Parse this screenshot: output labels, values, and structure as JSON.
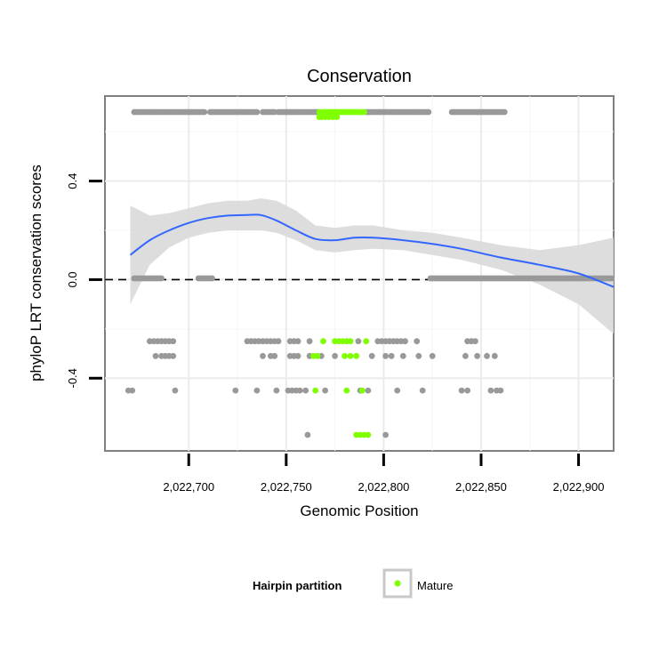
{
  "chart_data": {
    "type": "scatter",
    "title": "Conservation",
    "xlabel": "Genomic Position",
    "ylabel": "phyloP LRT conservation scores",
    "xlim": [
      2022657,
      2022918
    ],
    "ylim": [
      -0.695,
      0.745
    ],
    "x_ticks": [
      {
        "value": 2022700,
        "label": "2,022,700"
      },
      {
        "value": 2022750,
        "label": "2,022,750"
      },
      {
        "value": 2022800,
        "label": "2,022,800"
      },
      {
        "value": 2022850,
        "label": "2,022,850"
      },
      {
        "value": 2022900,
        "label": "2,022,900"
      }
    ],
    "y_ticks": [
      {
        "value": -0.4,
        "label": "-0.4"
      },
      {
        "value": 0.0,
        "label": "0.0"
      },
      {
        "value": 0.4,
        "label": "0.4"
      }
    ],
    "reference_line": {
      "y": 0.0,
      "style": "dashed",
      "color": "#000000"
    },
    "point_colors": {
      "other": "#999999",
      "mature": "#7fff00"
    },
    "point_groups": [
      {
        "y": 0.68,
        "x": [
          2022672,
          2022673,
          2022674,
          2022675,
          2022676,
          2022677,
          2022678,
          2022679,
          2022680,
          2022681,
          2022682,
          2022683,
          2022684,
          2022685,
          2022686,
          2022687,
          2022688,
          2022689,
          2022690,
          2022691,
          2022692,
          2022693,
          2022694,
          2022695,
          2022696,
          2022697,
          2022698,
          2022699,
          2022700,
          2022701,
          2022702,
          2022703,
          2022704,
          2022705,
          2022706,
          2022707,
          2022708,
          2022711,
          2022712,
          2022713,
          2022714,
          2022715,
          2022716,
          2022717,
          2022718,
          2022719,
          2022720,
          2022721,
          2022722,
          2022723,
          2022724,
          2022725,
          2022726,
          2022727,
          2022728,
          2022729,
          2022730,
          2022731,
          2022732,
          2022733,
          2022734,
          2022735,
          2022738,
          2022739,
          2022740,
          2022741,
          2022742,
          2022743,
          2022744,
          2022746,
          2022747,
          2022748,
          2022749,
          2022750,
          2022751,
          2022752,
          2022753,
          2022754,
          2022755,
          2022756,
          2022757,
          2022758,
          2022759,
          2022760,
          2022761,
          2022762,
          2022763,
          2022764,
          2022765,
          2022766,
          2022791,
          2022792,
          2022793,
          2022794,
          2022795,
          2022796,
          2022797,
          2022798,
          2022799,
          2022800,
          2022801,
          2022802,
          2022803,
          2022804,
          2022805,
          2022806,
          2022807,
          2022808,
          2022809,
          2022810,
          2022811,
          2022812,
          2022813,
          2022814,
          2022815,
          2022816,
          2022817,
          2022818,
          2022819,
          2022820,
          2022821,
          2022822,
          2022823,
          2022835,
          2022836,
          2022837,
          2022838,
          2022839,
          2022840,
          2022841,
          2022842,
          2022843,
          2022844,
          2022845,
          2022846,
          2022847,
          2022848,
          2022849,
          2022850,
          2022851,
          2022852,
          2022853,
          2022854,
          2022855,
          2022856,
          2022857,
          2022858,
          2022859,
          2022860,
          2022861,
          2022862
        ]
      },
      {
        "y": 0.68,
        "mature": true,
        "x": [
          2022767,
          2022768,
          2022769,
          2022770,
          2022771,
          2022772,
          2022773,
          2022774,
          2022775,
          2022776,
          2022777,
          2022778,
          2022779,
          2022780,
          2022781,
          2022782,
          2022783,
          2022784,
          2022785,
          2022786,
          2022787,
          2022788,
          2022789,
          2022790
        ]
      },
      {
        "y": 0.66,
        "mature": true,
        "x": [
          2022767,
          2022768,
          2022770,
          2022772,
          2022774,
          2022776
        ]
      },
      {
        "y": 0.005,
        "x": [
          2022672,
          2022673,
          2022674,
          2022675,
          2022676,
          2022677,
          2022678,
          2022679,
          2022680,
          2022681,
          2022682,
          2022683,
          2022684,
          2022685,
          2022686,
          2022705,
          2022706,
          2022707,
          2022708,
          2022709,
          2022710,
          2022711,
          2022712,
          2022824,
          2022825,
          2022826,
          2022827,
          2022828,
          2022829,
          2022830,
          2022831,
          2022832,
          2022833,
          2022834,
          2022835,
          2022836,
          2022837,
          2022838,
          2022839,
          2022840,
          2022841,
          2022842,
          2022843,
          2022844,
          2022845,
          2022846,
          2022847,
          2022848,
          2022849,
          2022850,
          2022851,
          2022852,
          2022853,
          2022854,
          2022855,
          2022856,
          2022857,
          2022858,
          2022859,
          2022860,
          2022861,
          2022862,
          2022863,
          2022864,
          2022865,
          2022866,
          2022867,
          2022868,
          2022869,
          2022870,
          2022871,
          2022872,
          2022873,
          2022874,
          2022875,
          2022876,
          2022877,
          2022878,
          2022879,
          2022880,
          2022881,
          2022882,
          2022883,
          2022884,
          2022885,
          2022886,
          2022887,
          2022888,
          2022889,
          2022890,
          2022891,
          2022892,
          2022893,
          2022894,
          2022895,
          2022896,
          2022897,
          2022898,
          2022899,
          2022900,
          2022901,
          2022902,
          2022903,
          2022904,
          2022905,
          2022906,
          2022907,
          2022908,
          2022909,
          2022910,
          2022911,
          2022912,
          2022913,
          2022914,
          2022915,
          2022916,
          2022917
        ]
      },
      {
        "y": -0.25,
        "x": [
          2022680,
          2022682,
          2022684,
          2022686,
          2022688,
          2022690,
          2022692,
          2022730,
          2022732,
          2022734,
          2022736,
          2022738,
          2022740,
          2022742,
          2022744,
          2022746,
          2022752,
          2022754,
          2022756,
          2022762,
          2022787,
          2022797,
          2022799,
          2022801,
          2022803,
          2022805,
          2022807,
          2022809,
          2022811,
          2022817,
          2022843,
          2022845,
          2022847
        ]
      },
      {
        "y": -0.25,
        "mature": true,
        "x": [
          2022769,
          2022775,
          2022777,
          2022779,
          2022781,
          2022783,
          2022791
        ]
      },
      {
        "y": -0.31,
        "x": [
          2022683,
          2022686,
          2022688,
          2022690,
          2022692,
          2022738,
          2022742,
          2022744,
          2022752,
          2022754,
          2022756,
          2022762,
          2022768,
          2022775,
          2022794,
          2022801,
          2022804,
          2022810,
          2022818,
          2022825,
          2022842,
          2022848,
          2022853,
          2022857
        ]
      },
      {
        "y": -0.31,
        "mature": true,
        "x": [
          2022764,
          2022766,
          2022780,
          2022783,
          2022786
        ]
      },
      {
        "y": -0.45,
        "x": [
          2022669,
          2022671,
          2022693,
          2022724,
          2022735,
          2022745,
          2022751,
          2022753,
          2022755,
          2022757,
          2022760,
          2022770,
          2022788,
          2022792,
          2022807,
          2022820,
          2022840,
          2022843,
          2022855,
          2022858,
          2022860
        ]
      },
      {
        "y": -0.45,
        "mature": true,
        "x": [
          2022765,
          2022781,
          2022789
        ]
      },
      {
        "y": -0.63,
        "x": [
          2022761,
          2022801
        ]
      },
      {
        "y": -0.63,
        "mature": true,
        "x": [
          2022786,
          2022788,
          2022790,
          2022792
        ]
      }
    ],
    "smooth_fit": {
      "color": "#3366ff",
      "band_color": "#d9d9d9",
      "x": [
        2022670,
        2022680,
        2022690,
        2022700,
        2022710,
        2022720,
        2022730,
        2022737,
        2022745,
        2022755,
        2022765,
        2022775,
        2022785,
        2022795,
        2022810,
        2022825,
        2022840,
        2022860,
        2022880,
        2022900,
        2022918
      ],
      "y": [
        0.1,
        0.16,
        0.2,
        0.23,
        0.25,
        0.26,
        0.262,
        0.262,
        0.24,
        0.2,
        0.165,
        0.16,
        0.17,
        0.17,
        0.16,
        0.145,
        0.125,
        0.09,
        0.06,
        0.025,
        -0.03
      ],
      "lower": [
        -0.1,
        0.06,
        0.13,
        0.17,
        0.19,
        0.2,
        0.2,
        0.2,
        0.19,
        0.16,
        0.12,
        0.11,
        0.12,
        0.125,
        0.12,
        0.1,
        0.08,
        0.04,
        -0.02,
        -0.1,
        -0.22
      ],
      "upper": [
        0.3,
        0.26,
        0.27,
        0.29,
        0.31,
        0.32,
        0.32,
        0.33,
        0.32,
        0.28,
        0.22,
        0.21,
        0.22,
        0.22,
        0.2,
        0.19,
        0.17,
        0.14,
        0.12,
        0.14,
        0.17
      ]
    },
    "legend": {
      "title": "Hairpin partition",
      "entries": [
        {
          "label": "Mature",
          "color": "#7fff00"
        }
      ],
      "placement": "bottom"
    },
    "grid": true
  }
}
